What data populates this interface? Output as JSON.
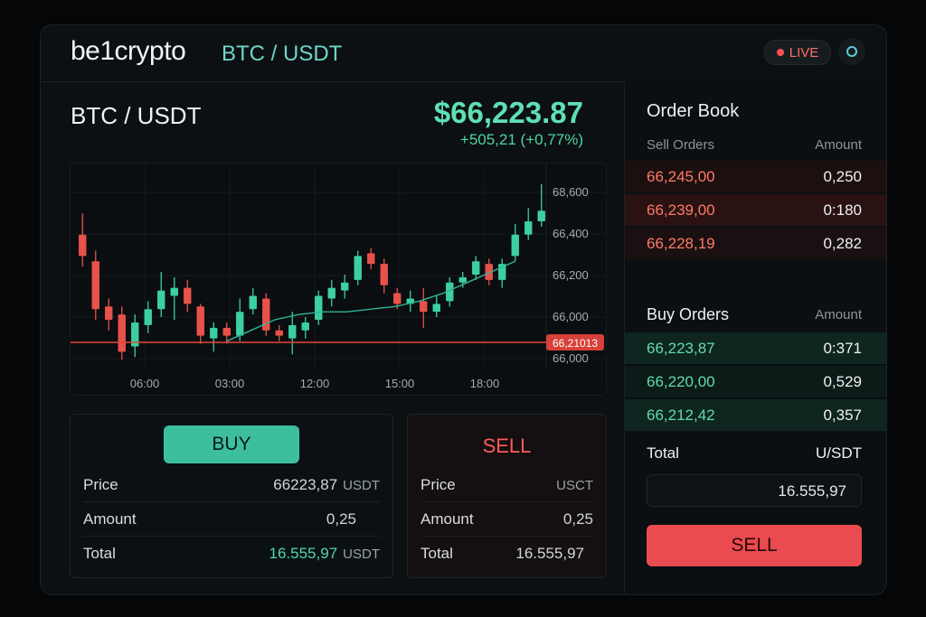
{
  "header": {
    "logo": "be1crypto",
    "pair": "BTC / USDT",
    "live_label": "LIVE"
  },
  "ticker": {
    "pair": "BTC / USDT",
    "price": "$66,223.87",
    "change": "+505,21 (+0,77%)"
  },
  "chart_data": {
    "type": "candlestick",
    "x_ticks": [
      "06:00",
      "03:00",
      "12:00",
      "15:00",
      "18:00"
    ],
    "y_ticks": [
      "68,600",
      "66,400",
      "66,200",
      "66,000",
      "66,000"
    ],
    "current_price_tag": "66,21013",
    "candles": [
      {
        "o": 66400,
        "c": 66320,
        "h": 66480,
        "l": 66280,
        "dir": "down"
      },
      {
        "o": 66300,
        "c": 66120,
        "h": 66340,
        "l": 66080,
        "dir": "down"
      },
      {
        "o": 66130,
        "c": 66080,
        "h": 66160,
        "l": 66040,
        "dir": "down"
      },
      {
        "o": 66100,
        "c": 65960,
        "h": 66130,
        "l": 65930,
        "dir": "down"
      },
      {
        "o": 65980,
        "c": 66070,
        "h": 66100,
        "l": 65940,
        "dir": "up"
      },
      {
        "o": 66060,
        "c": 66120,
        "h": 66150,
        "l": 66030,
        "dir": "up"
      },
      {
        "o": 66120,
        "c": 66190,
        "h": 66260,
        "l": 66090,
        "dir": "up"
      },
      {
        "o": 66170,
        "c": 66200,
        "h": 66240,
        "l": 66080,
        "dir": "up"
      },
      {
        "o": 66200,
        "c": 66140,
        "h": 66230,
        "l": 66110,
        "dir": "down"
      },
      {
        "o": 66130,
        "c": 66020,
        "h": 66140,
        "l": 65990,
        "dir": "down"
      },
      {
        "o": 66010,
        "c": 66050,
        "h": 66070,
        "l": 65960,
        "dir": "up"
      },
      {
        "o": 66050,
        "c": 66020,
        "h": 66070,
        "l": 65990,
        "dir": "down"
      },
      {
        "o": 66020,
        "c": 66110,
        "h": 66160,
        "l": 66000,
        "dir": "up"
      },
      {
        "o": 66120,
        "c": 66170,
        "h": 66200,
        "l": 66100,
        "dir": "up"
      },
      {
        "o": 66160,
        "c": 66040,
        "h": 66180,
        "l": 66020,
        "dir": "down"
      },
      {
        "o": 66040,
        "c": 66020,
        "h": 66060,
        "l": 66000,
        "dir": "down"
      },
      {
        "o": 66010,
        "c": 66060,
        "h": 66110,
        "l": 65950,
        "dir": "up"
      },
      {
        "o": 66040,
        "c": 66070,
        "h": 66090,
        "l": 66010,
        "dir": "up"
      },
      {
        "o": 66080,
        "c": 66170,
        "h": 66190,
        "l": 66060,
        "dir": "up"
      },
      {
        "o": 66160,
        "c": 66200,
        "h": 66230,
        "l": 66130,
        "dir": "up"
      },
      {
        "o": 66190,
        "c": 66220,
        "h": 66250,
        "l": 66160,
        "dir": "up"
      },
      {
        "o": 66230,
        "c": 66320,
        "h": 66340,
        "l": 66210,
        "dir": "up"
      },
      {
        "o": 66330,
        "c": 66290,
        "h": 66350,
        "l": 66270,
        "dir": "down"
      },
      {
        "o": 66290,
        "c": 66210,
        "h": 66310,
        "l": 66180,
        "dir": "down"
      },
      {
        "o": 66180,
        "c": 66140,
        "h": 66200,
        "l": 66120,
        "dir": "down"
      },
      {
        "o": 66140,
        "c": 66160,
        "h": 66190,
        "l": 66110,
        "dir": "up"
      },
      {
        "o": 66150,
        "c": 66110,
        "h": 66200,
        "l": 66050,
        "dir": "down"
      },
      {
        "o": 66110,
        "c": 66140,
        "h": 66170,
        "l": 66090,
        "dir": "up"
      },
      {
        "o": 66150,
        "c": 66220,
        "h": 66240,
        "l": 66130,
        "dir": "up"
      },
      {
        "o": 66220,
        "c": 66240,
        "h": 66260,
        "l": 66200,
        "dir": "up"
      },
      {
        "o": 66250,
        "c": 66300,
        "h": 66320,
        "l": 66230,
        "dir": "up"
      },
      {
        "o": 66290,
        "c": 66230,
        "h": 66310,
        "l": 66210,
        "dir": "down"
      },
      {
        "o": 66230,
        "c": 66290,
        "h": 66310,
        "l": 66200,
        "dir": "up"
      },
      {
        "o": 66320,
        "c": 66400,
        "h": 66440,
        "l": 66300,
        "dir": "up"
      },
      {
        "o": 66400,
        "c": 66450,
        "h": 66500,
        "l": 66380,
        "dir": "up"
      },
      {
        "o": 66450,
        "c": 66490,
        "h": 66590,
        "l": 66430,
        "dir": "up"
      }
    ],
    "moving_average": [
      66000,
      66040,
      66080,
      66100,
      66110,
      66110,
      66120,
      66130,
      66150,
      66180,
      66220,
      66260,
      66300
    ]
  },
  "buy_card": {
    "button": "BUY",
    "price_label": "Price",
    "price_value": "66223,87",
    "price_unit": "USDT",
    "amount_label": "Amount",
    "amount_value": "0,25",
    "total_label": "Total",
    "total_value": "16.555,97",
    "total_unit": "USDT"
  },
  "sell_card": {
    "title": "SELL",
    "price_label": "Price",
    "price_unit": "USCT",
    "amount_label": "Amount",
    "amount_value": "0,25",
    "total_label": "Total",
    "total_value": "16.555,97"
  },
  "order_book": {
    "title": "Order Book",
    "sell_header": "Sell Orders",
    "amount_header": "Amount",
    "sell_orders": [
      {
        "price": "66,245,00",
        "amount": "0,250"
      },
      {
        "price": "66,239,00",
        "amount": "0:180"
      },
      {
        "price": "66,228,19",
        "amount": "0,282"
      }
    ],
    "buy_header": "Buy Orders",
    "buy_amount_header": "Amount",
    "buy_orders": [
      {
        "price": "66,223,87",
        "amount": "0:371"
      },
      {
        "price": "66,220,00",
        "amount": "0,529"
      },
      {
        "price": "66,212,42",
        "amount": "0,357"
      }
    ],
    "total_label": "Total",
    "total_unit": "U/SDT",
    "total_value": "16.555,97",
    "sell_button": "SELL"
  },
  "colors": {
    "up": "#3ccfa2",
    "down": "#e8524a",
    "accent": "#5ee0b5"
  }
}
